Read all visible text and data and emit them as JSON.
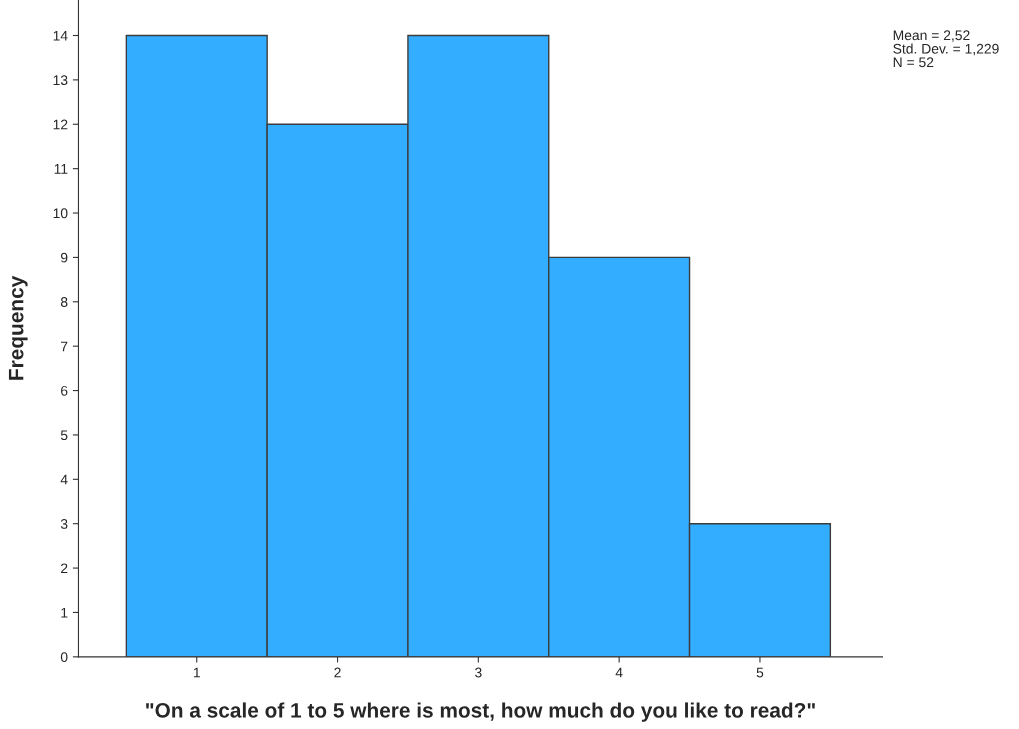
{
  "chart_data": {
    "type": "histogram",
    "xlabel": "\"On a scale of 1 to 5 where is most, how much do you like to read?\"",
    "ylabel": "Frequency",
    "bins": [
      0.5,
      1.5,
      2.5,
      3.5,
      4.5,
      5.5
    ],
    "values": [
      14,
      12,
      14,
      9,
      3
    ],
    "color": "#33adff",
    "xlim": [
      0.16,
      5.87
    ],
    "xticks": [
      1,
      2,
      3,
      4,
      5
    ],
    "ylim": [
      0,
      14.8
    ],
    "yticks": [
      0,
      1,
      2,
      3,
      4,
      5,
      6,
      7,
      8,
      9,
      10,
      11,
      12,
      13,
      14
    ],
    "grid": false,
    "annotations": [
      "Mean = 2,52",
      "Std. Dev. = 1,229",
      "N = 52"
    ]
  }
}
